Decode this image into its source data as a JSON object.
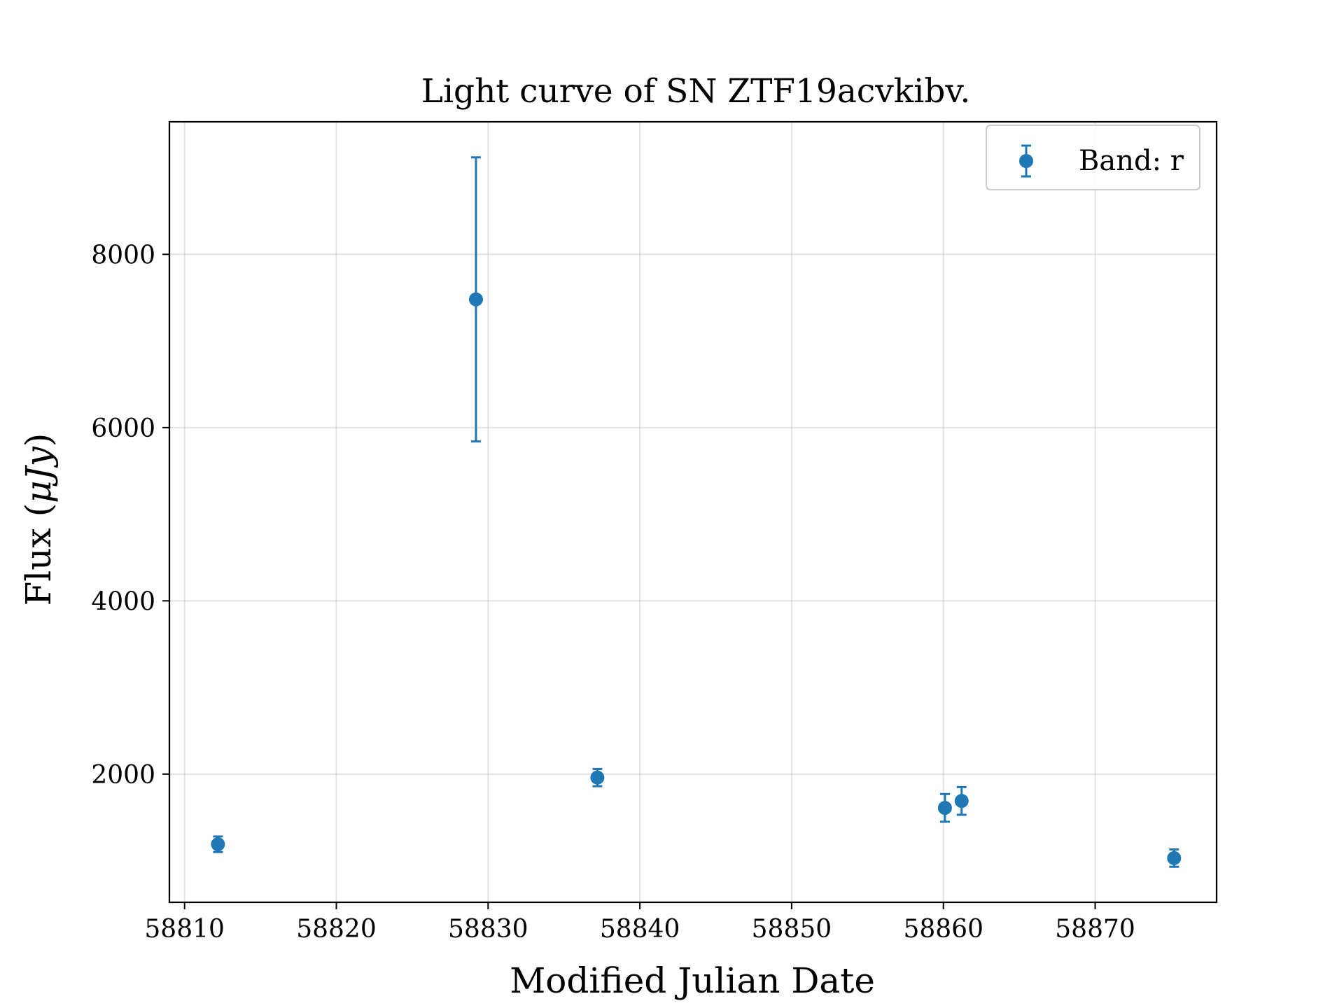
{
  "chart_data": {
    "type": "scatter",
    "title": "Light curve of SN ZTF19acvkibv.",
    "xlabel": "Modified Julian Date",
    "ylabel_prefix": "Flux (",
    "ylabel_unit": "μJy",
    "ylabel_suffix": ")",
    "xlim": [
      58809.0,
      58878.0
    ],
    "ylim": [
      520,
      9530
    ],
    "xticks": [
      58810,
      58820,
      58830,
      58840,
      58850,
      58860,
      58870
    ],
    "yticks": [
      2000,
      4000,
      6000,
      8000
    ],
    "grid": true,
    "legend_position": "top-right",
    "series": [
      {
        "name": "Band: r",
        "color": "#1f77b4",
        "points": [
          {
            "x": 58812.2,
            "y": 1190,
            "err": 90
          },
          {
            "x": 58829.2,
            "y": 7480,
            "err": 1640
          },
          {
            "x": 58837.2,
            "y": 1960,
            "err": 100
          },
          {
            "x": 58860.1,
            "y": 1610,
            "err": 160
          },
          {
            "x": 58861.2,
            "y": 1690,
            "err": 160
          },
          {
            "x": 58875.2,
            "y": 1030,
            "err": 100
          }
        ]
      }
    ]
  }
}
